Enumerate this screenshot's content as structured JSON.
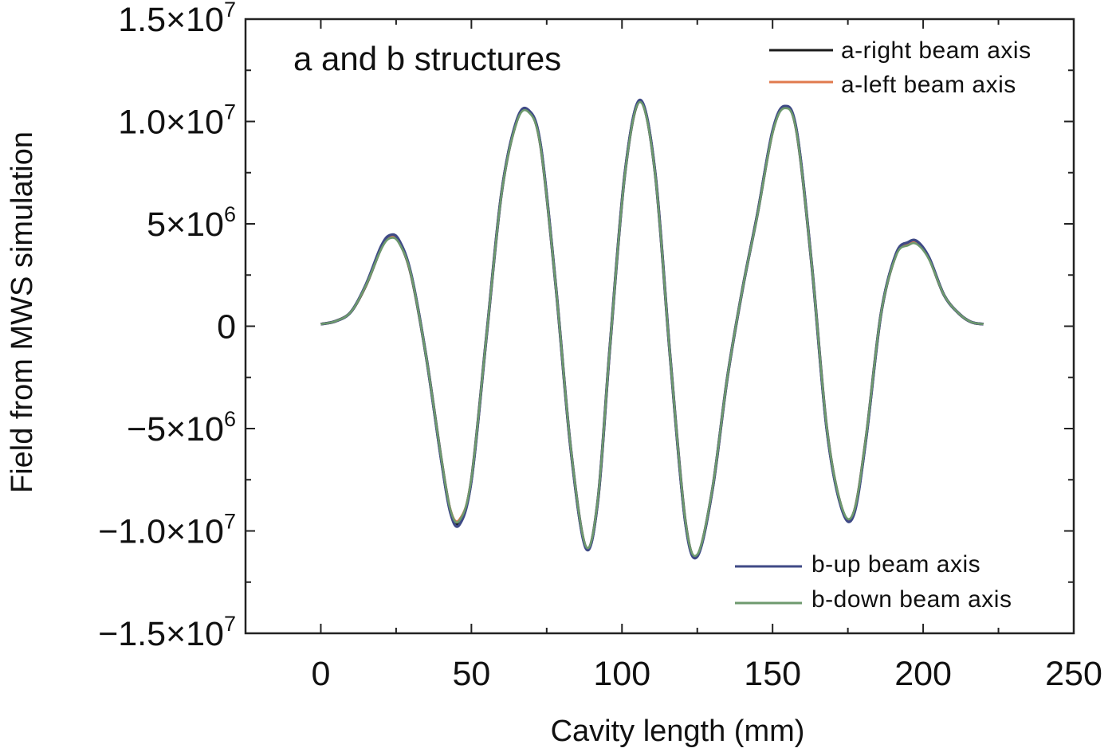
{
  "chart_data": {
    "type": "line",
    "title": "a and b structures",
    "xlabel": "Cavity length (mm)",
    "ylabel": "Field from MWS simulation",
    "xlim": [
      -25,
      250
    ],
    "ylim": [
      -15000000,
      15000000
    ],
    "grid": false,
    "x_ticks": [
      {
        "value": 0,
        "label": "0"
      },
      {
        "value": 50,
        "label": "50"
      },
      {
        "value": 100,
        "label": "100"
      },
      {
        "value": 150,
        "label": "150"
      },
      {
        "value": 200,
        "label": "200"
      },
      {
        "value": 250,
        "label": "250"
      }
    ],
    "y_ticks": [
      {
        "value": 15000000,
        "mant": "1.5",
        "times": "×",
        "base": "10",
        "exp": "7"
      },
      {
        "value": 10000000,
        "mant": "1.0",
        "times": "×",
        "base": "10",
        "exp": "7"
      },
      {
        "value": 5000000,
        "mant": "5",
        "times": "×",
        "base": "10",
        "exp": "6"
      },
      {
        "value": 0,
        "mant": "0",
        "times": "",
        "base": "",
        "exp": ""
      },
      {
        "value": -5000000,
        "mant": "−5",
        "times": "×",
        "base": "10",
        "exp": "6"
      },
      {
        "value": -10000000,
        "mant": "−1.0",
        "times": "×",
        "base": "10",
        "exp": "7"
      },
      {
        "value": -15000000,
        "mant": "−1.5",
        "times": "×",
        "base": "10",
        "exp": "7"
      }
    ],
    "legend": {
      "top": [
        {
          "name": "a-right beam axis",
          "color": "#1a1a1a"
        },
        {
          "name": "a-left beam axis",
          "color": "#e07a4e"
        }
      ],
      "bottom": [
        {
          "name": "b-up beam axis",
          "color": "#3f4a86"
        },
        {
          "name": "b-down beam axis",
          "color": "#6e9a6e"
        }
      ]
    },
    "x": [
      0,
      5,
      10,
      15,
      20,
      23,
      26,
      30,
      35,
      40,
      43,
      46,
      50,
      55,
      60,
      65,
      69,
      73,
      78,
      83,
      88,
      92,
      96,
      101,
      106,
      111,
      116,
      121,
      125,
      130,
      135,
      140,
      145,
      150,
      154,
      158,
      163,
      168,
      173,
      177,
      181,
      186,
      191,
      195,
      198,
      202,
      207,
      212,
      216,
      220
    ],
    "series": [
      {
        "name": "a-right beam axis",
        "color": "#1a1a1a",
        "values": [
          100000,
          250000,
          700000,
          2000000,
          3800000,
          4350000,
          4100000,
          2500000,
          -1500000,
          -6500000,
          -9000000,
          -9600000,
          -7500000,
          -500000,
          6500000,
          10000000,
          10500000,
          8800000,
          2000000,
          -6000000,
          -10800000,
          -8500000,
          -1000000,
          7500000,
          11000000,
          7500000,
          -1500000,
          -9500000,
          -11200000,
          -8000000,
          -2500000,
          1800000,
          5500000,
          9500000,
          10700000,
          9500000,
          3000000,
          -5000000,
          -8900000,
          -9100000,
          -5500000,
          600000,
          3500000,
          4000000,
          4050000,
          3300000,
          1500000,
          600000,
          200000,
          100000
        ]
      },
      {
        "name": "a-left beam axis",
        "color": "#e07a4e",
        "values": [
          100000,
          250000,
          700000,
          2000000,
          3800000,
          4350000,
          4100000,
          2500000,
          -1500000,
          -6500000,
          -8950000,
          -9450000,
          -7500000,
          -500000,
          6500000,
          10000000,
          10500000,
          8800000,
          2000000,
          -6000000,
          -10800000,
          -8500000,
          -1000000,
          7500000,
          11000000,
          7500000,
          -1500000,
          -9500000,
          -11200000,
          -8000000,
          -2500000,
          1800000,
          5500000,
          9500000,
          10700000,
          9500000,
          3000000,
          -5000000,
          -8900000,
          -9100000,
          -5500000,
          600000,
          3500000,
          4000000,
          4050000,
          3300000,
          1500000,
          600000,
          200000,
          100000
        ]
      },
      {
        "name": "b-up beam axis",
        "color": "#3f4a86",
        "values": [
          100000,
          250000,
          700000,
          2050000,
          3900000,
          4450000,
          4200000,
          2550000,
          -1500000,
          -6550000,
          -9100000,
          -9700000,
          -7550000,
          -500000,
          6500000,
          10050000,
          10550000,
          8850000,
          2000000,
          -6000000,
          -10850000,
          -8500000,
          -1000000,
          7500000,
          11050000,
          7500000,
          -1500000,
          -9550000,
          -11250000,
          -8000000,
          -2500000,
          1800000,
          5500000,
          9550000,
          10750000,
          9550000,
          3000000,
          -5050000,
          -8950000,
          -9200000,
          -5550000,
          600000,
          3550000,
          4100000,
          4150000,
          3350000,
          1500000,
          600000,
          200000,
          100000
        ]
      },
      {
        "name": "b-down beam axis",
        "color": "#6e9a6e",
        "values": [
          100000,
          250000,
          700000,
          2000000,
          3750000,
          4300000,
          4050000,
          2500000,
          -1500000,
          -6450000,
          -8950000,
          -9500000,
          -7450000,
          -500000,
          6450000,
          9950000,
          10450000,
          8750000,
          2000000,
          -5950000,
          -10750000,
          -8450000,
          -1000000,
          7450000,
          10950000,
          7450000,
          -1500000,
          -9450000,
          -11150000,
          -7950000,
          -2500000,
          1800000,
          5450000,
          9450000,
          10650000,
          9450000,
          3000000,
          -4950000,
          -8850000,
          -9050000,
          -5450000,
          600000,
          3450000,
          3950000,
          4000000,
          3250000,
          1500000,
          600000,
          200000,
          100000
        ]
      }
    ]
  }
}
